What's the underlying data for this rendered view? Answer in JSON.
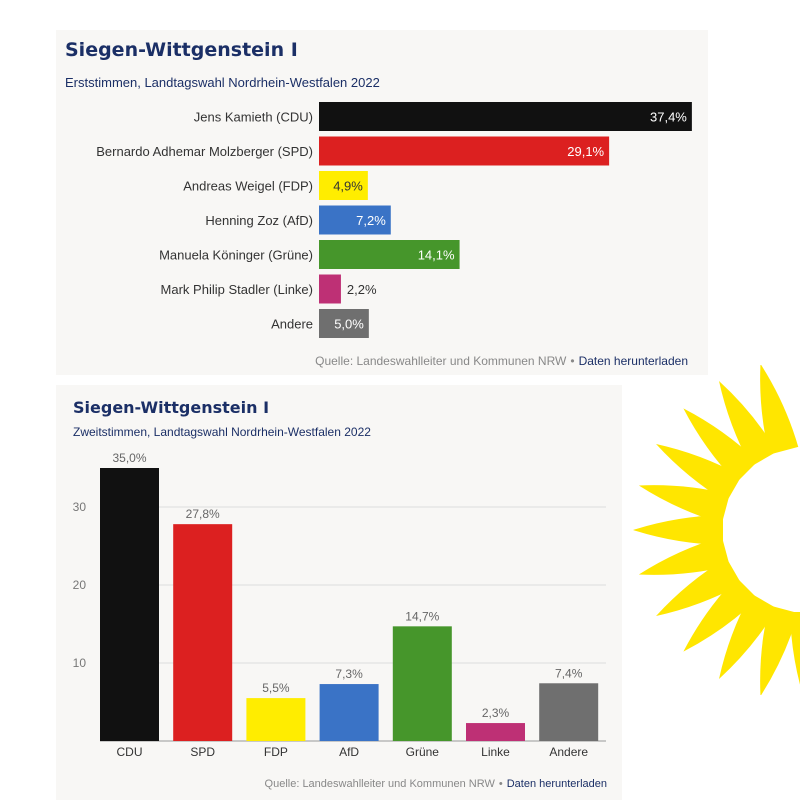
{
  "charts": [
    {
      "type": "bar",
      "orientation": "horizontal",
      "title": "Siegen-Wittgenstein I",
      "subtitle": "Erststimmen, Landtagswahl Nordrhein-Westfalen 2022",
      "categories": [
        "Jens Kamieth (CDU)",
        "Bernardo Adhemar Molzberger (SPD)",
        "Andreas Weigel (FDP)",
        "Henning Zoz (AfD)",
        "Manuela Köninger (Grüne)",
        "Mark Philip Stadler (Linke)",
        "Andere"
      ],
      "values": [
        37.4,
        29.1,
        4.9,
        7.2,
        14.1,
        2.2,
        5.0
      ],
      "value_labels": [
        "37,4%",
        "29,1%",
        "4,9%",
        "7,2%",
        "14,1%",
        "2,2%",
        "5,0%"
      ],
      "colors": [
        "#111111",
        "#dc2020",
        "#ffed00",
        "#3a73c6",
        "#46962b",
        "#be3075",
        "#6f6f6f"
      ],
      "label_colors": [
        "#ffffff",
        "#ffffff",
        "#333333",
        "#ffffff",
        "#ffffff",
        "#333333",
        "#ffffff"
      ],
      "source_text": "Quelle: Landeswahlleiter und Kommunen NRW",
      "download_link": "Daten herunterladen"
    },
    {
      "type": "bar",
      "orientation": "vertical",
      "title": "Siegen-Wittgenstein I",
      "subtitle": "Zweitstimmen, Landtagswahl Nordrhein-Westfalen 2022",
      "categories": [
        "CDU",
        "SPD",
        "FDP",
        "AfD",
        "Grüne",
        "Linke",
        "Andere"
      ],
      "values": [
        35.0,
        27.8,
        5.5,
        7.3,
        14.7,
        2.3,
        7.4
      ],
      "value_labels": [
        "35,0%",
        "27,8%",
        "5,5%",
        "7,3%",
        "14,7%",
        "2,3%",
        "7,4%"
      ],
      "colors": [
        "#111111",
        "#dc2020",
        "#ffed00",
        "#3a73c6",
        "#46962b",
        "#be3075",
        "#6f6f6f"
      ],
      "y_ticks": [
        10,
        20,
        30
      ],
      "ylim": [
        0,
        35
      ],
      "grid": true,
      "source_text": "Quelle: Landeswahlleiter und Kommunen NRW",
      "download_link": "Daten herunterladen"
    }
  ],
  "sunflower_color": "#ffe600"
}
